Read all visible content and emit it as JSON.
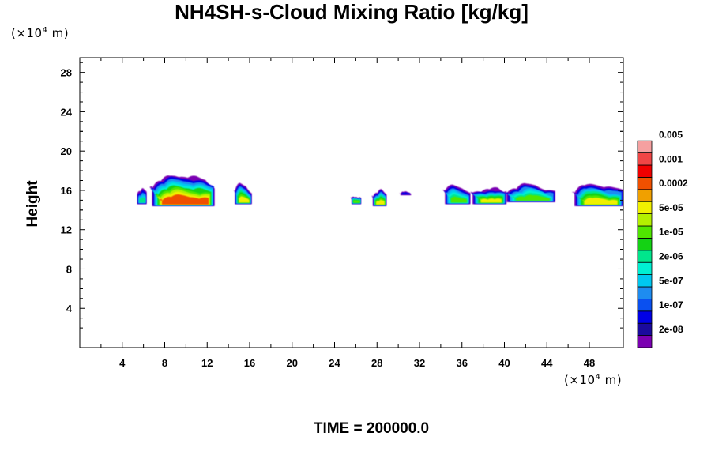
{
  "chart_data": {
    "type": "heatmap",
    "title": "NH4SH-s-Cloud Mixing Ratio [kg/kg]",
    "ylabel": "Height",
    "xlabel": "",
    "x_unit": {
      "prefix": "(×10",
      "exp": "4",
      "suffix": " m)"
    },
    "y_unit": {
      "prefix": "(×10",
      "exp": "4",
      "suffix": " m)"
    },
    "footer": "TIME = 200000.0",
    "xlim": [
      0,
      51.2
    ],
    "ylim": [
      0,
      29.5
    ],
    "x_ticks": [
      "4",
      "8",
      "12",
      "16",
      "20",
      "24",
      "28",
      "32",
      "36",
      "40",
      "44",
      "48"
    ],
    "y_ticks": [
      "4",
      "8",
      "12",
      "16",
      "20",
      "24",
      "28"
    ],
    "colorbar": {
      "colors": [
        "#7b00b2",
        "#1a0a9e",
        "#0000e6",
        "#0a50f0",
        "#1e8cf0",
        "#00c8f0",
        "#00f0d2",
        "#00e68c",
        "#14d214",
        "#50e600",
        "#b4f000",
        "#f0f000",
        "#f0a000",
        "#f05000",
        "#f00000",
        "#f04646",
        "#f5a0a0"
      ],
      "labels": [
        "2e-08",
        "1e-07",
        "5e-07",
        "2e-06",
        "1e-05",
        "5e-05",
        "0.0002",
        "0.001",
        "0.005"
      ]
    },
    "cloud_blobs": [
      {
        "x": [
          5.4,
          6.3
        ],
        "base": 14.6,
        "top": 16.2,
        "peak": "2e-06"
      },
      {
        "x": [
          6.8,
          12.7
        ],
        "base": 14.4,
        "top": 17.5,
        "peak": "0.0002"
      },
      {
        "x": [
          14.6,
          16.2
        ],
        "base": 14.6,
        "top": 16.6,
        "peak": "5e-05"
      },
      {
        "x": [
          25.6,
          26.5
        ],
        "base": 14.6,
        "top": 15.4,
        "peak": "5e-05"
      },
      {
        "x": [
          27.6,
          28.9
        ],
        "base": 14.4,
        "top": 16.0,
        "peak": "5e-05"
      },
      {
        "x": [
          30.2,
          31.2
        ],
        "base": 15.5,
        "top": 15.8,
        "peak": "1e-07"
      },
      {
        "x": [
          34.4,
          36.8
        ],
        "base": 14.6,
        "top": 16.5,
        "peak": "1e-05"
      },
      {
        "x": [
          37.0,
          40.2
        ],
        "base": 14.6,
        "top": 16.2,
        "peak": "5e-05"
      },
      {
        "x": [
          40.2,
          44.8
        ],
        "base": 14.8,
        "top": 16.5,
        "peak": "1e-05"
      },
      {
        "x": [
          46.6,
          51.2
        ],
        "base": 14.4,
        "top": 16.6,
        "peak": "5e-05"
      }
    ]
  }
}
